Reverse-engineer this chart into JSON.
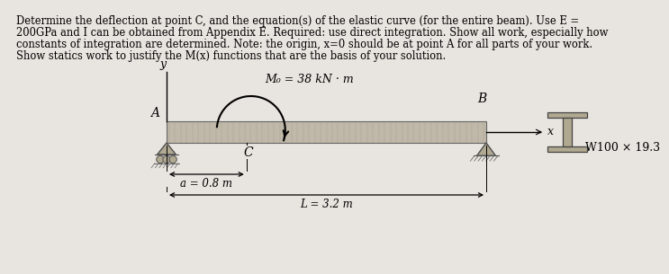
{
  "background_color": "#e8e4df",
  "text_color": "#000000",
  "paragraph_lines": [
    "Determine the deflection at point C, and the equation(s) of the elastic curve (for the entire beam). Use E =",
    "200GPa and I can be obtained from Appendix E. Required: use direct integration. Show all work, especially how",
    "constants of integration are determined. Note: the origin, x=0 should be at point A for all parts of your work.",
    "Show statics work to justify the M(x) functions that are the basis of your solution."
  ],
  "paragraph_fontsize": 8.3,
  "moment_label": "M₀ = 38 kN · m",
  "dim_a_label": "a = 0.8 m",
  "dim_L_label": "L = 3.2 m",
  "section_label": "W100 × 19.3",
  "label_A": "A",
  "label_B": "B",
  "label_C": "C",
  "label_y": "y",
  "label_x": "x"
}
